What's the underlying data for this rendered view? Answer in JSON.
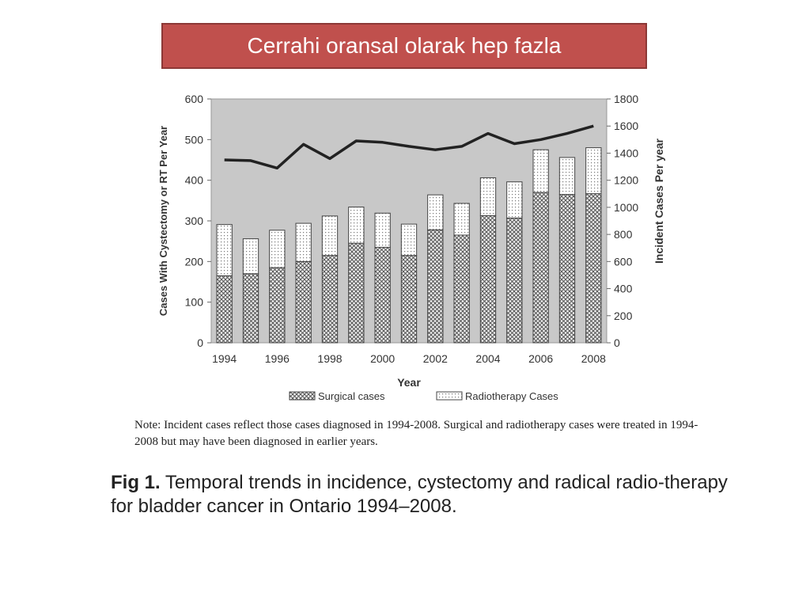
{
  "slide": {
    "title": "Cerrahi oransal olarak hep fazla"
  },
  "figure": {
    "note": "Note: Incident cases reflect those cases diagnosed in 1994-2008. Surgical and radiotherapy cases were treated in 1994-2008 but may have been diagnosed in earlier years.",
    "caption_label": "Fig 1.",
    "caption_text": "Temporal trends in incidence, cystectomy and radical radio-therapy for bladder cancer in Ontario 1994–2008."
  },
  "chart_data": {
    "type": "bar",
    "stacked": true,
    "categories": [
      "1994",
      "1995",
      "1996",
      "1997",
      "1998",
      "1999",
      "2000",
      "2001",
      "2002",
      "2003",
      "2004",
      "2005",
      "2006",
      "2007",
      "2008"
    ],
    "x_tick_labels": [
      "1994",
      "1996",
      "1998",
      "2000",
      "2002",
      "2004",
      "2006",
      "2008"
    ],
    "series": [
      {
        "name": "Surgical cases",
        "axis": "left",
        "pattern": "crosshatch",
        "values": [
          165,
          170,
          185,
          200,
          215,
          245,
          235,
          215,
          278,
          265,
          313,
          307,
          370,
          365,
          367
        ]
      },
      {
        "name": "Radiotherapy Cases",
        "axis": "left",
        "pattern": "dots",
        "values": [
          126,
          86,
          92,
          94,
          97,
          89,
          84,
          77,
          86,
          78,
          93,
          89,
          105,
          91,
          113
        ]
      },
      {
        "type": "line",
        "axis": "right",
        "color": "#222222",
        "values": [
          1350,
          1345,
          1290,
          1465,
          1360,
          1490,
          1480,
          1450,
          1425,
          1450,
          1545,
          1470,
          1500,
          1545,
          1600
        ]
      }
    ],
    "xlabel": "Year",
    "ylabel": "Cases With Cystectomy or RT Per Year",
    "y2label": "Incident Cases Per year",
    "ylim": [
      0,
      600
    ],
    "y2lim": [
      0,
      1800
    ],
    "yticks": [
      0,
      100,
      200,
      300,
      400,
      500,
      600
    ],
    "y2ticks": [
      0,
      200,
      400,
      600,
      800,
      1000,
      1200,
      1400,
      1600,
      1800
    ],
    "grid": false,
    "plot_background": "#c8c8c8",
    "legend_position": "bottom"
  }
}
